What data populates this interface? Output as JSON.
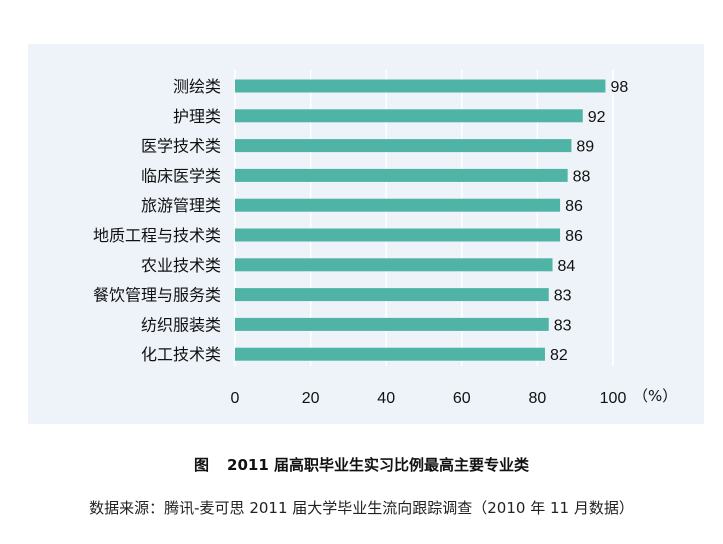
{
  "figure": {
    "fig_label": "图",
    "title": "2011 届高职毕业生实习比例最高主要专业类",
    "source": "数据来源：腾讯-麦可思 2011 届大学毕业生流向跟踪调查（2010 年 11 月数据）"
  },
  "chart_data": {
    "type": "bar",
    "orientation": "horizontal",
    "categories": [
      "测绘类",
      "护理类",
      "医学技术类",
      "临床医学类",
      "旅游管理类",
      "地质工程与技术类",
      "农业技术类",
      "餐饮管理与服务类",
      "纺织服装类",
      "化工技术类"
    ],
    "values": [
      98,
      92,
      89,
      88,
      86,
      86,
      84,
      83,
      83,
      82
    ],
    "xlim": [
      0,
      100
    ],
    "xticks": [
      "0",
      "20",
      "40",
      "60",
      "80",
      "100"
    ],
    "xunit": "（%）",
    "grid": "vertical",
    "colors": {
      "bar": "#4fb3a5",
      "grid": "#ffffff",
      "panel": "#eef3f9"
    }
  }
}
